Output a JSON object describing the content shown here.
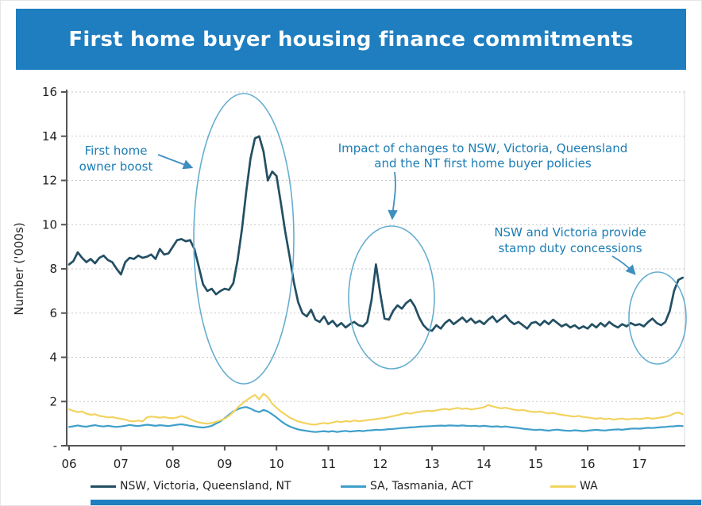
{
  "header": {
    "title": "First home buyer housing finance commitments"
  },
  "colors": {
    "banner_blue": "#1e7ec0",
    "series_dark": "#234f63",
    "series_light_blue": "#3f9fca",
    "series_yellow": "#f2d360",
    "annotation_blue": "#1c7db5",
    "ellipse_blue": "#66aecf",
    "arrow_blue": "#3e8fbf",
    "gridline_gray": "#c9c9c9",
    "axis_gray": "#555555",
    "tick_text": "#1f1f1f"
  },
  "chart_data": {
    "type": "line",
    "title": "First home buyer housing finance commitments",
    "xlabel": "",
    "ylabel": "Number ('000s)",
    "ylim": [
      0,
      16
    ],
    "grid": "horizontal dashed",
    "legend_position": "bottom",
    "ytick_values": [
      16,
      14,
      12,
      10,
      8,
      6,
      4,
      2,
      0
    ],
    "ytick_labels": [
      "16",
      "14",
      "12",
      "10",
      "8",
      "6",
      "4",
      "2",
      "-"
    ],
    "xtick_labels": [
      "06",
      "07",
      "08",
      "09",
      "10",
      "11",
      "12",
      "13",
      "14",
      "15",
      "16",
      "17"
    ],
    "x_frequency": "monthly from Jan 2006 to Nov 2017",
    "series": [
      {
        "name": "NSW, Victoria, Queensland, NT",
        "color": "#234f63",
        "values": [
          8.2,
          8.35,
          8.75,
          8.5,
          8.3,
          8.45,
          8.25,
          8.5,
          8.6,
          8.4,
          8.3,
          8.0,
          7.75,
          8.3,
          8.5,
          8.45,
          8.6,
          8.5,
          8.55,
          8.65,
          8.45,
          8.9,
          8.65,
          8.7,
          9.0,
          9.3,
          9.35,
          9.25,
          9.3,
          8.9,
          8.1,
          7.3,
          7.0,
          7.1,
          6.85,
          7.0,
          7.1,
          7.05,
          7.35,
          8.4,
          9.8,
          11.5,
          13.0,
          13.9,
          14.0,
          13.3,
          12.0,
          12.4,
          12.2,
          11.0,
          9.7,
          8.6,
          7.4,
          6.5,
          6.0,
          5.85,
          6.15,
          5.7,
          5.6,
          5.85,
          5.5,
          5.65,
          5.4,
          5.55,
          5.35,
          5.5,
          5.6,
          5.45,
          5.4,
          5.6,
          6.6,
          8.2,
          6.9,
          5.75,
          5.7,
          6.1,
          6.35,
          6.2,
          6.45,
          6.6,
          6.3,
          5.8,
          5.45,
          5.25,
          5.2,
          5.45,
          5.3,
          5.55,
          5.7,
          5.5,
          5.65,
          5.8,
          5.6,
          5.75,
          5.55,
          5.65,
          5.5,
          5.7,
          5.85,
          5.6,
          5.75,
          5.9,
          5.65,
          5.5,
          5.6,
          5.45,
          5.3,
          5.55,
          5.6,
          5.45,
          5.65,
          5.5,
          5.7,
          5.55,
          5.4,
          5.5,
          5.35,
          5.45,
          5.3,
          5.4,
          5.3,
          5.5,
          5.35,
          5.55,
          5.4,
          5.6,
          5.45,
          5.35,
          5.5,
          5.4,
          5.55,
          5.45,
          5.5,
          5.4,
          5.6,
          5.75,
          5.55,
          5.45,
          5.6,
          6.1,
          7.0,
          7.5,
          7.6
        ]
      },
      {
        "name": "SA, Tasmania, ACT",
        "color": "#3f9fca",
        "values": [
          0.85,
          0.88,
          0.92,
          0.88,
          0.86,
          0.9,
          0.93,
          0.89,
          0.87,
          0.9,
          0.87,
          0.85,
          0.87,
          0.9,
          0.94,
          0.91,
          0.89,
          0.92,
          0.95,
          0.93,
          0.9,
          0.93,
          0.91,
          0.89,
          0.92,
          0.95,
          0.97,
          0.94,
          0.9,
          0.87,
          0.84,
          0.82,
          0.85,
          0.9,
          1.0,
          1.1,
          1.25,
          1.4,
          1.55,
          1.65,
          1.72,
          1.75,
          1.68,
          1.58,
          1.52,
          1.62,
          1.55,
          1.42,
          1.28,
          1.12,
          0.98,
          0.88,
          0.8,
          0.74,
          0.7,
          0.67,
          0.64,
          0.62,
          0.64,
          0.66,
          0.63,
          0.66,
          0.62,
          0.65,
          0.67,
          0.64,
          0.66,
          0.68,
          0.66,
          0.69,
          0.7,
          0.72,
          0.71,
          0.73,
          0.75,
          0.76,
          0.78,
          0.8,
          0.81,
          0.83,
          0.84,
          0.86,
          0.87,
          0.88,
          0.89,
          0.9,
          0.91,
          0.9,
          0.92,
          0.91,
          0.9,
          0.92,
          0.9,
          0.89,
          0.9,
          0.88,
          0.9,
          0.88,
          0.86,
          0.88,
          0.85,
          0.87,
          0.84,
          0.82,
          0.8,
          0.77,
          0.75,
          0.73,
          0.71,
          0.73,
          0.7,
          0.68,
          0.71,
          0.73,
          0.7,
          0.68,
          0.67,
          0.7,
          0.68,
          0.66,
          0.68,
          0.7,
          0.72,
          0.7,
          0.69,
          0.71,
          0.73,
          0.74,
          0.72,
          0.75,
          0.77,
          0.78,
          0.77,
          0.79,
          0.81,
          0.8,
          0.82,
          0.84,
          0.85,
          0.87,
          0.88,
          0.9,
          0.89
        ]
      },
      {
        "name": "WA",
        "color": "#f2d360",
        "values": [
          1.65,
          1.58,
          1.52,
          1.55,
          1.45,
          1.4,
          1.42,
          1.35,
          1.32,
          1.28,
          1.3,
          1.25,
          1.22,
          1.18,
          1.12,
          1.1,
          1.14,
          1.1,
          1.28,
          1.32,
          1.3,
          1.27,
          1.3,
          1.26,
          1.24,
          1.28,
          1.34,
          1.28,
          1.2,
          1.12,
          1.06,
          1.02,
          1.0,
          1.03,
          1.08,
          1.15,
          1.22,
          1.35,
          1.52,
          1.72,
          1.9,
          2.05,
          2.18,
          2.3,
          2.1,
          2.35,
          2.2,
          1.9,
          1.72,
          1.55,
          1.42,
          1.28,
          1.18,
          1.1,
          1.05,
          1.0,
          0.97,
          0.95,
          1.0,
          1.03,
          1.0,
          1.05,
          1.1,
          1.07,
          1.12,
          1.09,
          1.14,
          1.11,
          1.13,
          1.16,
          1.18,
          1.2,
          1.23,
          1.26,
          1.3,
          1.34,
          1.38,
          1.43,
          1.48,
          1.45,
          1.5,
          1.53,
          1.56,
          1.58,
          1.56,
          1.6,
          1.64,
          1.67,
          1.63,
          1.68,
          1.71,
          1.66,
          1.69,
          1.64,
          1.67,
          1.7,
          1.74,
          1.84,
          1.78,
          1.73,
          1.69,
          1.72,
          1.67,
          1.63,
          1.6,
          1.62,
          1.57,
          1.54,
          1.52,
          1.55,
          1.5,
          1.46,
          1.49,
          1.43,
          1.4,
          1.37,
          1.34,
          1.32,
          1.35,
          1.3,
          1.28,
          1.25,
          1.22,
          1.25,
          1.2,
          1.23,
          1.18,
          1.21,
          1.23,
          1.19,
          1.21,
          1.23,
          1.2,
          1.23,
          1.26,
          1.22,
          1.25,
          1.28,
          1.31,
          1.36,
          1.46,
          1.5,
          1.42
        ]
      }
    ],
    "annotations": [
      {
        "id": "boost",
        "lines": [
          "First home",
          "owner boost"
        ]
      },
      {
        "id": "impact",
        "lines": [
          "Impact of changes to NSW, Victoria, Queensland",
          "and the NT first home buyer policies"
        ]
      },
      {
        "id": "stamp",
        "lines": [
          "NSW and Victoria provide",
          "stamp duty concessions"
        ]
      }
    ]
  }
}
